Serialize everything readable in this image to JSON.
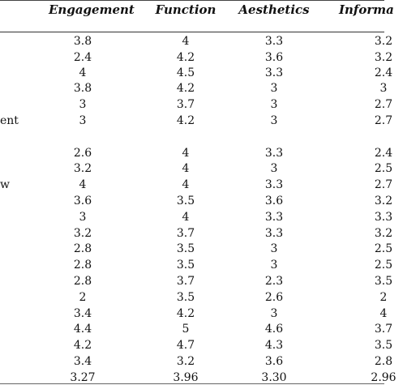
{
  "header": {
    "engagement": "Engagement",
    "function": "Function",
    "aesthetics": "Aesthetics",
    "information": "Informa"
  },
  "rows": [
    {
      "label": "",
      "engagement": "3.8",
      "function": "4",
      "aesthetics": "3.3",
      "information": "3.2"
    },
    {
      "label": "",
      "engagement": "2.4",
      "function": "4.2",
      "aesthetics": "3.6",
      "information": "3.2"
    },
    {
      "label": "",
      "engagement": "4",
      "function": "4.5",
      "aesthetics": "3.3",
      "information": "2.4"
    },
    {
      "label": "",
      "engagement": "3.8",
      "function": "4.2",
      "aesthetics": "3",
      "information": "3"
    },
    {
      "label": "",
      "engagement": "3",
      "function": "3.7",
      "aesthetics": "3",
      "information": "2.7"
    },
    {
      "label": "ent",
      "engagement": "3",
      "function": "4.2",
      "aesthetics": "3",
      "information": "2.7"
    },
    {
      "label": "",
      "engagement": "2.6",
      "function": "4",
      "aesthetics": "3.3",
      "information": "2.4"
    },
    {
      "label": "",
      "engagement": "3.2",
      "function": "4",
      "aesthetics": "3",
      "information": "2.5"
    },
    {
      "label": "w",
      "engagement": "4",
      "function": "4",
      "aesthetics": "3.3",
      "information": "2.7"
    },
    {
      "label": "",
      "engagement": "3.6",
      "function": "3.5",
      "aesthetics": "3.6",
      "information": "3.2"
    },
    {
      "label": "",
      "engagement": "3",
      "function": "4",
      "aesthetics": "3.3",
      "information": "3.3"
    },
    {
      "label": "",
      "engagement": "3.2",
      "function": "3.7",
      "aesthetics": "3.3",
      "information": "3.2"
    },
    {
      "label": "",
      "engagement": "2.8",
      "function": "3.5",
      "aesthetics": "3",
      "information": "2.5"
    },
    {
      "label": "",
      "engagement": "2.8",
      "function": "3.5",
      "aesthetics": "3",
      "information": "2.5"
    },
    {
      "label": "",
      "engagement": "2.8",
      "function": "3.7",
      "aesthetics": "2.3",
      "information": "3.5"
    },
    {
      "label": "",
      "engagement": "2",
      "function": "3.5",
      "aesthetics": "2.6",
      "information": "2"
    },
    {
      "label": "",
      "engagement": "3.4",
      "function": "4.2",
      "aesthetics": "3",
      "information": "4"
    },
    {
      "label": "",
      "engagement": "4.4",
      "function": "5",
      "aesthetics": "4.6",
      "information": "3.7"
    },
    {
      "label": "",
      "engagement": "4.2",
      "function": "4.7",
      "aesthetics": "4.3",
      "information": "3.5"
    },
    {
      "label": "",
      "engagement": "3.4",
      "function": "3.2",
      "aesthetics": "3.6",
      "information": "2.8"
    },
    {
      "label": "",
      "engagement": "3.27",
      "function": "3.96",
      "aesthetics": "3.30",
      "information": "2.96"
    }
  ]
}
